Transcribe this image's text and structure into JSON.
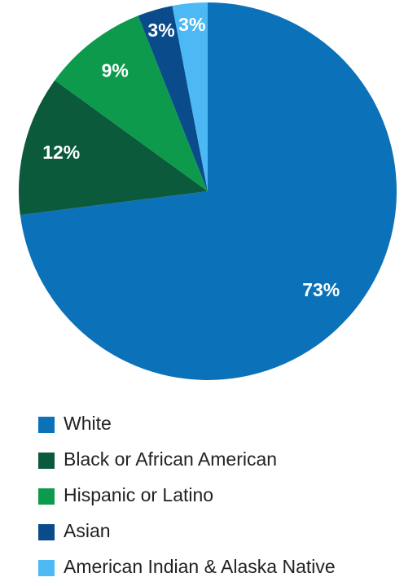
{
  "chart_data": {
    "type": "pie",
    "categories": [
      "White",
      "Black or African American",
      "Hispanic or Latino",
      "Asian",
      "American Indian & Alaska Native"
    ],
    "values": [
      73,
      12,
      9,
      3,
      3
    ],
    "value_labels": [
      "73%",
      "12%",
      "9%",
      "3%",
      "3%"
    ],
    "colors": [
      "#0b71b9",
      "#0a5a3b",
      "#0d9a4c",
      "#0a4b8c",
      "#4cb9f4"
    ],
    "legend": "bottom"
  }
}
